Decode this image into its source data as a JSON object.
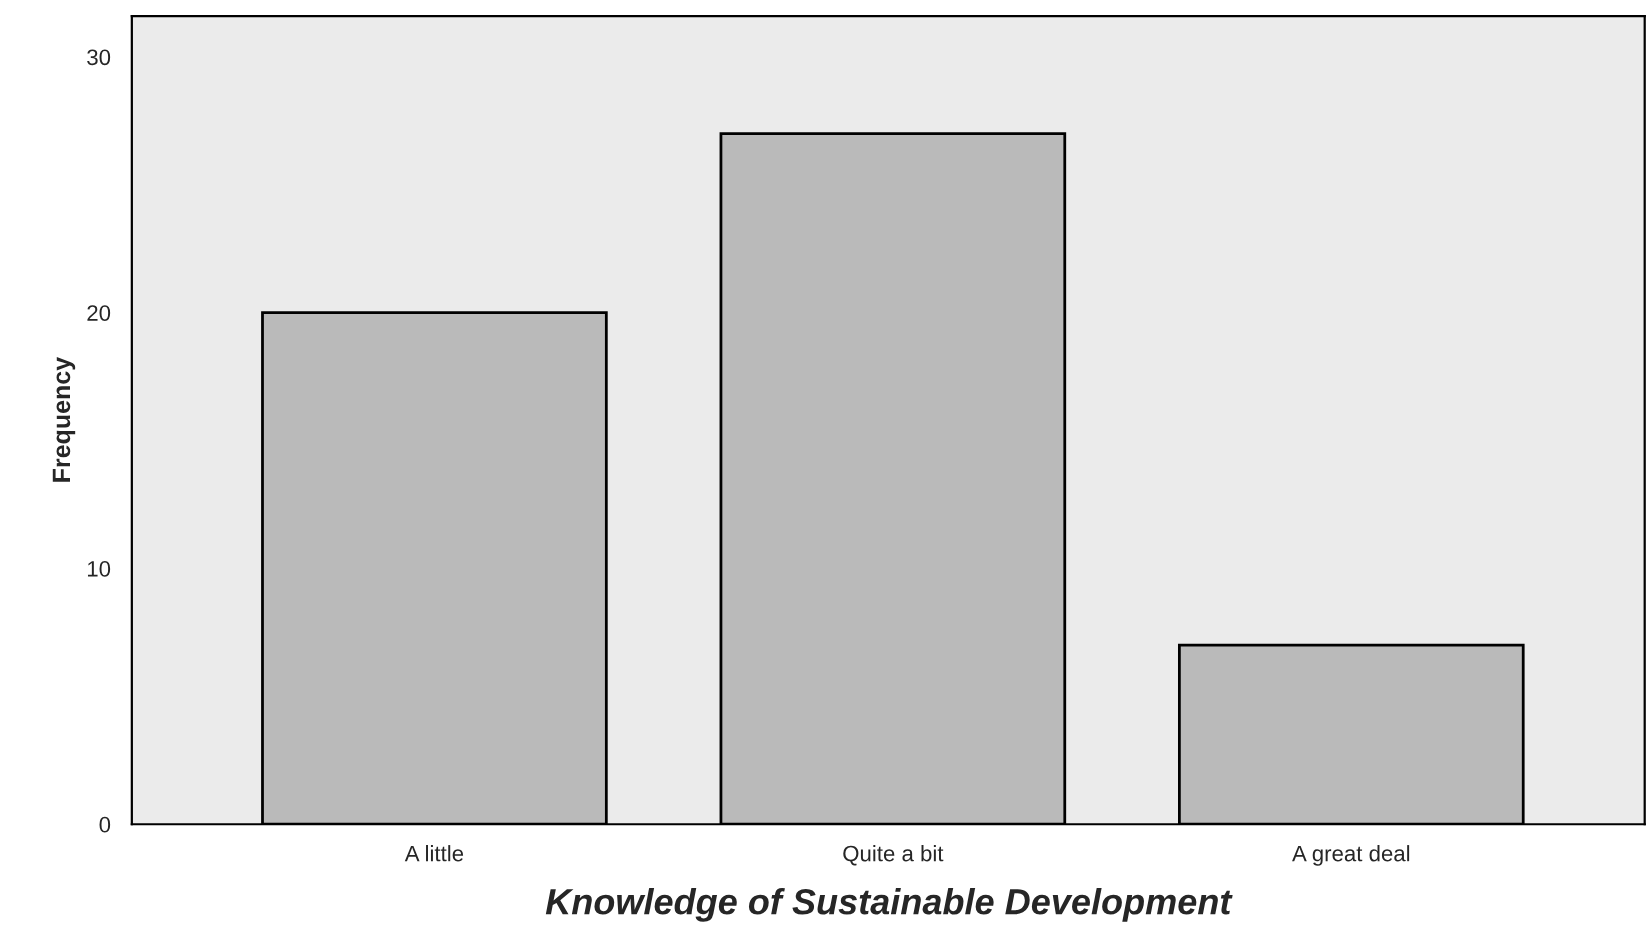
{
  "chart_data": {
    "type": "bar",
    "xlabel": "Knowledge of Sustainable Development",
    "ylabel": "Frequency",
    "categories": [
      "A little",
      "Quite a bit",
      "A great deal"
    ],
    "values": [
      20,
      27,
      7
    ],
    "color": "#bababa",
    "ylim": [
      0,
      31.6
    ],
    "yticks": [
      0,
      10,
      20,
      30
    ],
    "grid": false,
    "legend": false
  }
}
